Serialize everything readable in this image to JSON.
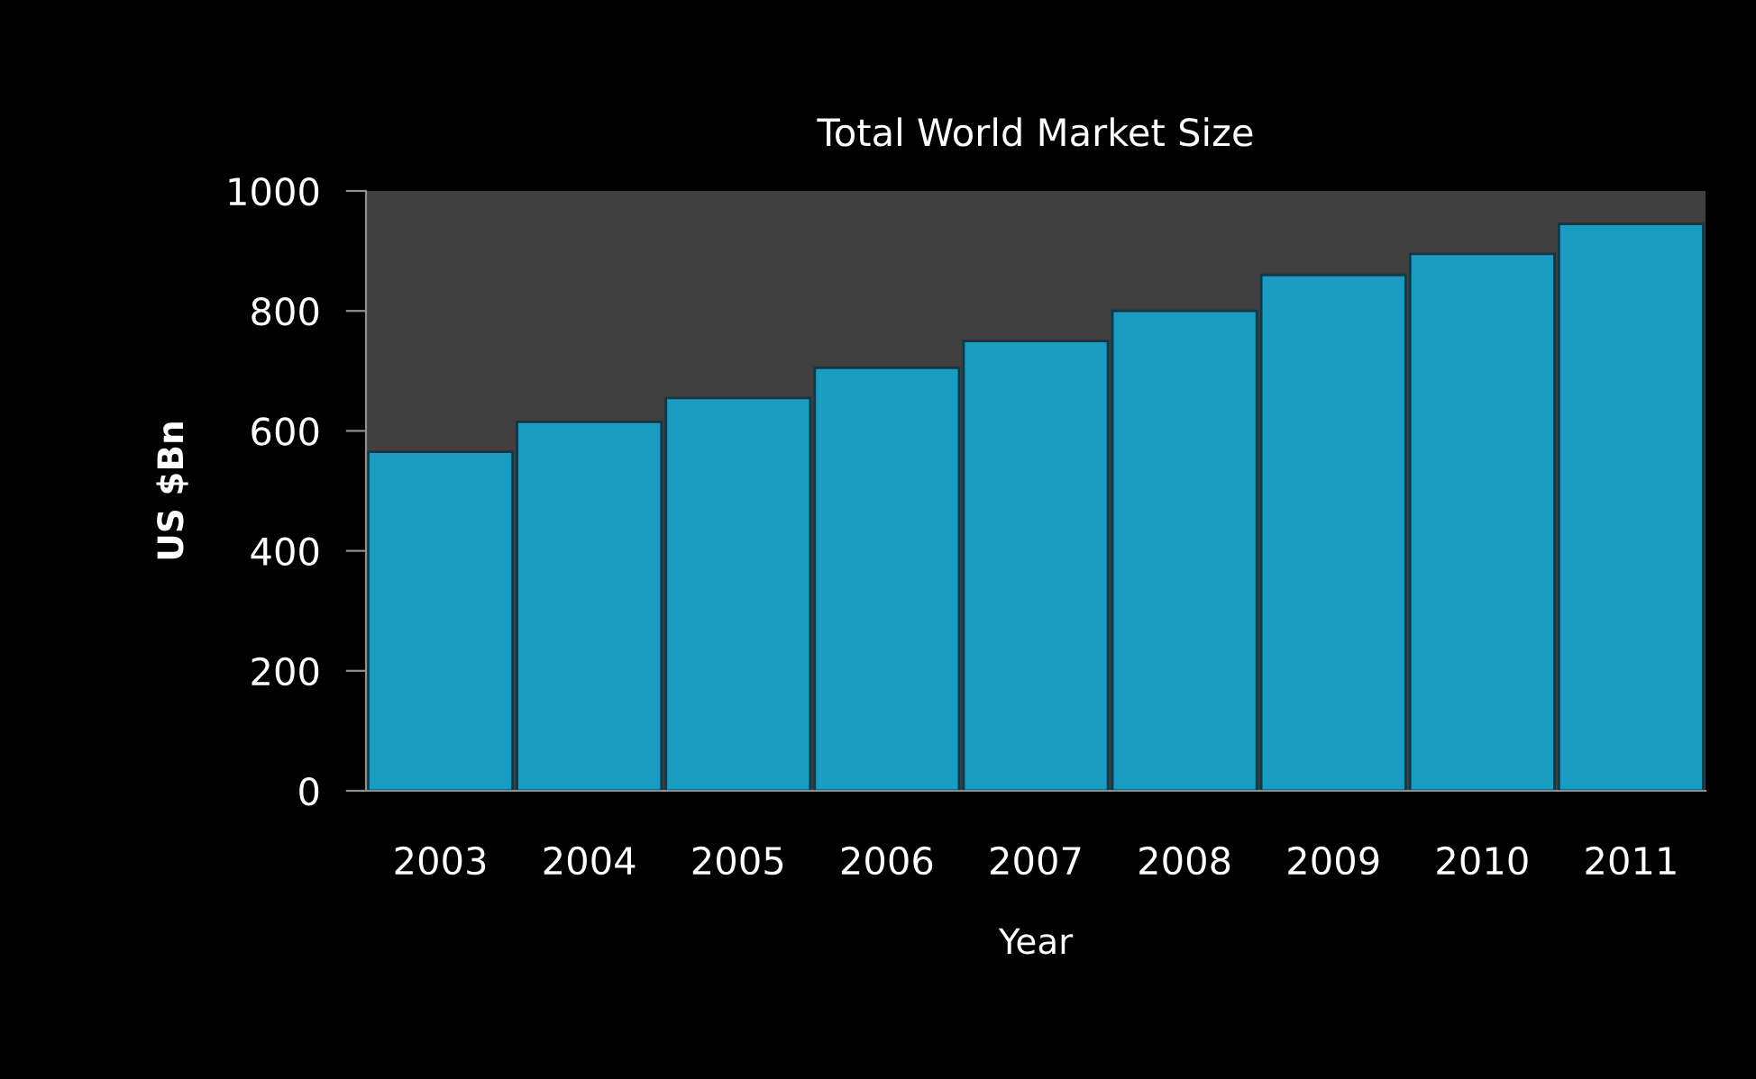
{
  "chart_data": {
    "type": "bar",
    "title": "Total World Market Size",
    "xlabel": "Year",
    "ylabel": "US $Bn",
    "categories": [
      "2003",
      "2004",
      "2005",
      "2006",
      "2007",
      "2008",
      "2009",
      "2010",
      "2011"
    ],
    "values": [
      565,
      615,
      655,
      705,
      750,
      800,
      860,
      895,
      945
    ],
    "color": "#1a9cc2",
    "ylim": [
      0,
      1000
    ],
    "yticks": [
      0,
      200,
      400,
      600,
      800,
      1000
    ],
    "grid": false,
    "legend": false
  }
}
